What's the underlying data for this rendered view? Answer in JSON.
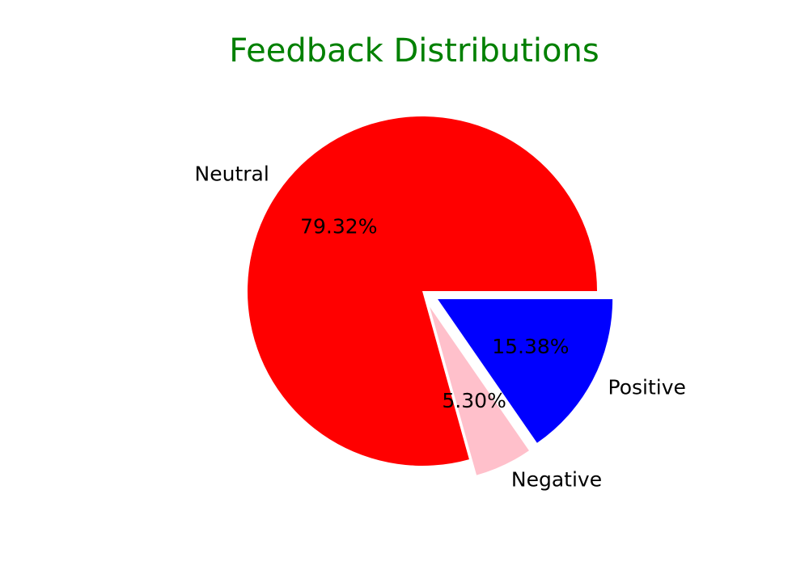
{
  "chart_data": {
    "type": "pie",
    "title": "Feedback Distributions",
    "title_color": "#008000",
    "slices": [
      {
        "label": "Neutral",
        "value": 79.32,
        "value_label": "79.32%",
        "color": "#ff0000",
        "exploded": false
      },
      {
        "label": "Negative",
        "value": 5.3,
        "value_label": "5.30%",
        "color": "#ffc0cb",
        "exploded": true
      },
      {
        "label": "Positive",
        "value": 15.38,
        "value_label": "15.38%",
        "color": "#0000ff",
        "exploded": true
      }
    ],
    "start_angle": 0,
    "direction": "counterclockwise"
  }
}
